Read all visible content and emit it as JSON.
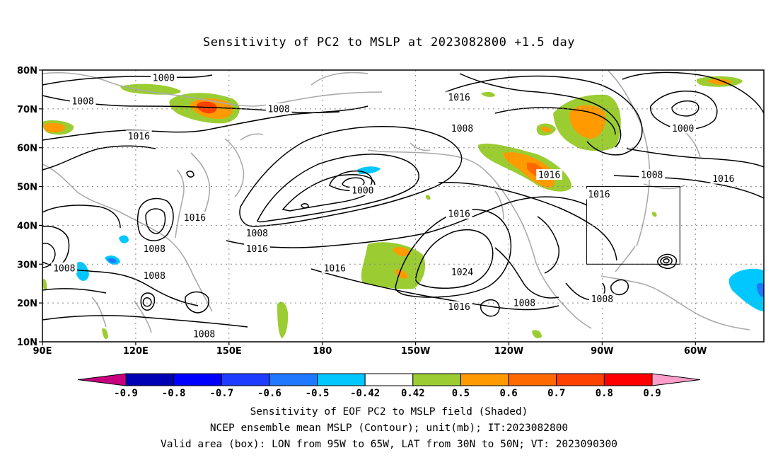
{
  "title": "Sensitivity of PC2 to MSLP at 2023082800 +1.5 day",
  "lat_ticks": [
    {
      "lat": 80,
      "label": "80N"
    },
    {
      "lat": 70,
      "label": "70N"
    },
    {
      "lat": 60,
      "label": "60N"
    },
    {
      "lat": 50,
      "label": "50N"
    },
    {
      "lat": 40,
      "label": "40N"
    },
    {
      "lat": 30,
      "label": "30N"
    },
    {
      "lat": 20,
      "label": "20N"
    },
    {
      "lat": 10,
      "label": "10N"
    }
  ],
  "lon_ticks": [
    {
      "lon": 90,
      "label": "90E"
    },
    {
      "lon": 120,
      "label": "120E"
    },
    {
      "lon": 150,
      "label": "150E"
    },
    {
      "lon": 180,
      "label": "180"
    },
    {
      "lon": 210,
      "label": "150W"
    },
    {
      "lon": 240,
      "label": "120W"
    },
    {
      "lon": 270,
      "label": "90W"
    },
    {
      "lon": 300,
      "label": "60W"
    }
  ],
  "contour_labels": [
    {
      "text": "1000",
      "lon": 129,
      "lat": 78
    },
    {
      "text": "1008",
      "lon": 103,
      "lat": 72
    },
    {
      "text": "1008",
      "lon": 166,
      "lat": 70
    },
    {
      "text": "1016",
      "lon": 121,
      "lat": 63
    },
    {
      "text": "1016",
      "lon": 224,
      "lat": 73
    },
    {
      "text": "1008",
      "lon": 225,
      "lat": 65
    },
    {
      "text": "1000",
      "lon": 296,
      "lat": 65
    },
    {
      "text": "1016",
      "lon": 253,
      "lat": 53
    },
    {
      "text": "1008",
      "lon": 286,
      "lat": 53
    },
    {
      "text": "1016",
      "lon": 309,
      "lat": 52
    },
    {
      "text": "1000",
      "lon": 193,
      "lat": 49
    },
    {
      "text": "1016",
      "lon": 269,
      "lat": 48
    },
    {
      "text": "1016",
      "lon": 224,
      "lat": 43
    },
    {
      "text": "1016",
      "lon": 139,
      "lat": 42
    },
    {
      "text": "1008",
      "lon": 159,
      "lat": 38
    },
    {
      "text": "1016",
      "lon": 159,
      "lat": 34
    },
    {
      "text": "1008",
      "lon": 126,
      "lat": 34
    },
    {
      "text": "1008",
      "lon": 97,
      "lat": 29
    },
    {
      "text": "1008",
      "lon": 126,
      "lat": 27
    },
    {
      "text": "1016",
      "lon": 184,
      "lat": 29
    },
    {
      "text": "1024",
      "lon": 225,
      "lat": 28
    },
    {
      "text": "1016",
      "lon": 224,
      "lat": 19
    },
    {
      "text": "1008",
      "lon": 245,
      "lat": 20
    },
    {
      "text": "1008",
      "lon": 270,
      "lat": 21
    },
    {
      "text": "1008",
      "lon": 142,
      "lat": 12
    }
  ],
  "colorbar": {
    "bins": [
      {
        "color": "#c80080"
      },
      {
        "color": "#0000b4"
      },
      {
        "color": "#0000ff"
      },
      {
        "color": "#1e3cff"
      },
      {
        "color": "#1f78ff"
      },
      {
        "color": "#00c8ff"
      },
      {
        "color": "#ffffff"
      },
      {
        "color": "#9bcd32"
      },
      {
        "color": "#ff9a00"
      },
      {
        "color": "#ff6a00"
      },
      {
        "color": "#ff4100"
      },
      {
        "color": "#ff0000"
      },
      {
        "color": "#ff9ec8"
      }
    ],
    "labels": [
      "-0.9",
      "-0.8",
      "-0.7",
      "-0.6",
      "-0.5",
      "-0.42",
      "0.42",
      "0.5",
      "0.6",
      "0.7",
      "0.8",
      "0.9"
    ]
  },
  "box": {
    "lon_w": 265,
    "lon_e": 295,
    "lat_s": 30,
    "lat_n": 50
  },
  "captions": [
    "Sensitivity of EOF PC2 to MSLP field (Shaded)",
    "NCEP ensemble mean MSLP (Contour); unit(mb); IT:2023082800",
    "Valid area (box): LON from 95W to 65W, LAT from 30N to 50N; VT: 2023090300"
  ]
}
